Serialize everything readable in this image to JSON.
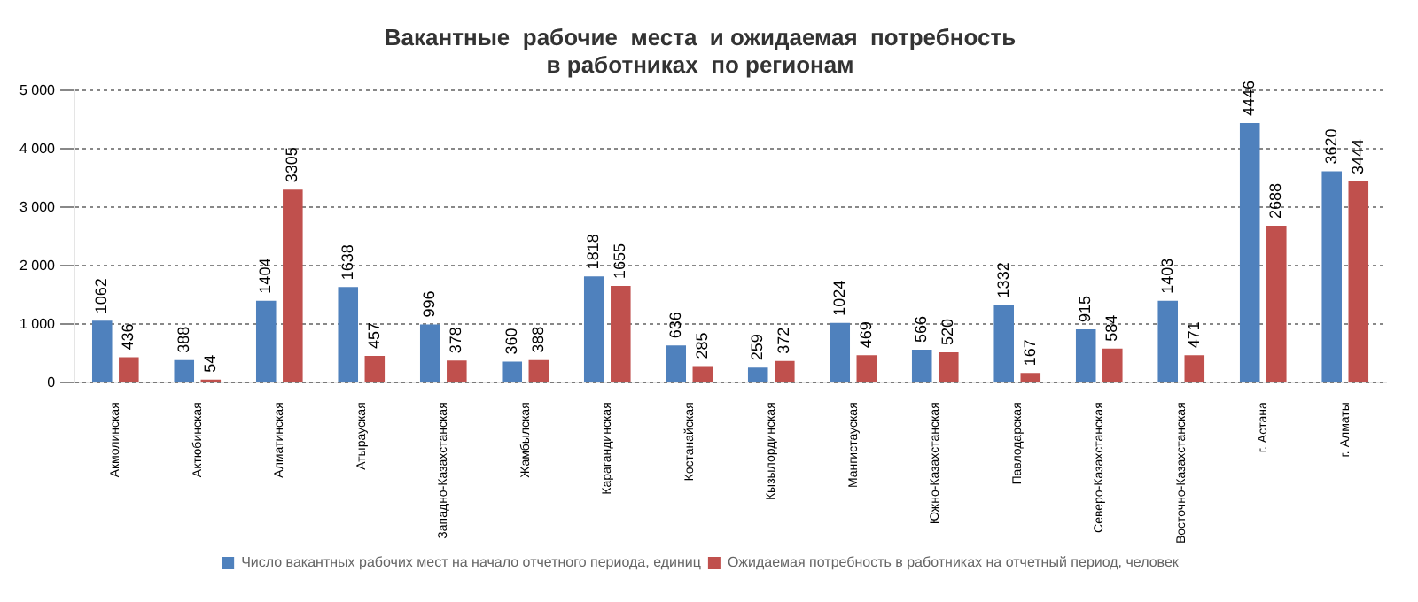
{
  "chart_data": {
    "type": "bar",
    "title": "Вакантные  рабочие  места  и ожидаемая  потребность\nв работниках  по регионам",
    "categories": [
      "Акмолинская",
      "Актюбинская",
      "Алматинская",
      "Атырауская",
      "Западно-Казахстанская",
      "Жамбылская",
      "Карагандинская",
      "Костанайская",
      "Кызылординская",
      "Мангистауская",
      "Южно-Казахстанская",
      "Павлодарская",
      "Северо-Казахстанская",
      "Восточно-Казахстанская",
      "г. Астана",
      "г. Алматы"
    ],
    "series": [
      {
        "name": "Число вакантных рабочих мест на начало отчетного периода, единиц",
        "color": "#4f81bd",
        "values": [
          1062,
          388,
          1404,
          1638,
          996,
          360,
          1818,
          636,
          259,
          1024,
          566,
          1332,
          915,
          1403,
          4446,
          3620
        ]
      },
      {
        "name": "Ожидаемая потребность в работниках на отчетный период, человек",
        "color": "#c0504d",
        "values": [
          436,
          54,
          3305,
          457,
          378,
          388,
          1655,
          285,
          372,
          469,
          520,
          167,
          584,
          471,
          2688,
          3444
        ]
      }
    ],
    "ylim": [
      0,
      5000
    ],
    "yticks": [
      0,
      {
        "value": 1000,
        "label": "1 000"
      },
      {
        "value": 2000,
        "label": "2 000"
      },
      {
        "value": 3000,
        "label": "3 000"
      },
      {
        "value": 4000,
        "label": "4 000"
      },
      {
        "value": 5000,
        "label": "5 000"
      }
    ],
    "grid": "y",
    "legend": "bottom",
    "data_labels": true
  }
}
